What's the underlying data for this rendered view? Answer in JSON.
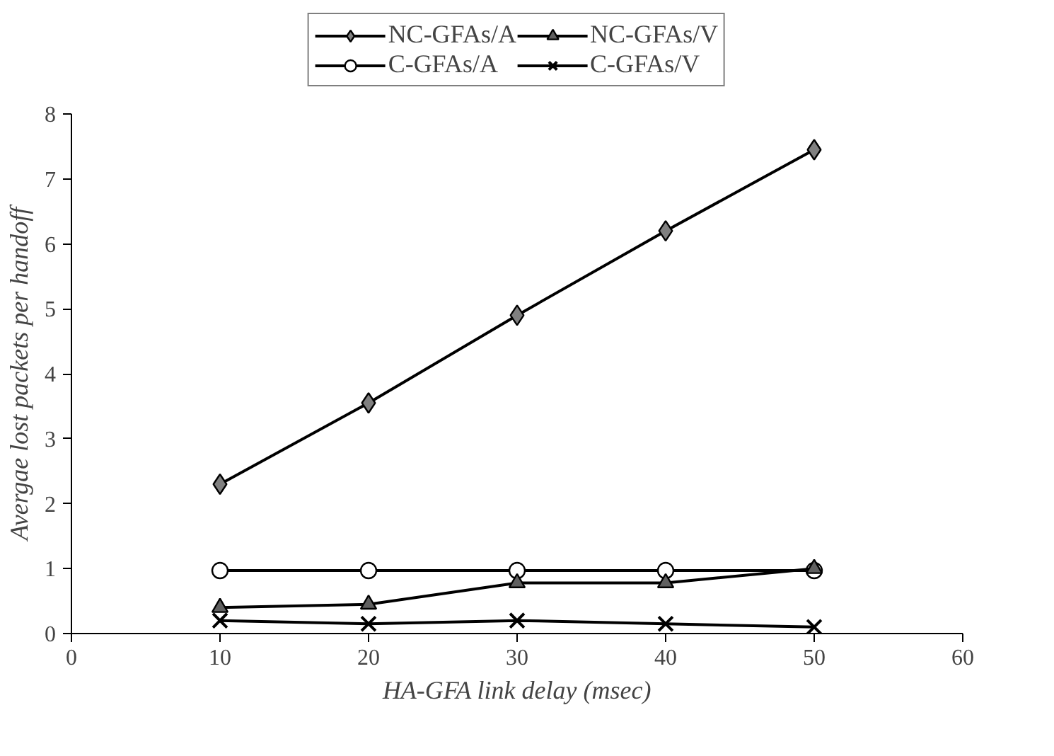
{
  "chart_data": {
    "type": "line",
    "xlabel": "HA-GFA link delay (msec)",
    "ylabel": "Avergae lost packets per handoff",
    "x": [
      10,
      20,
      30,
      40,
      50
    ],
    "series": [
      {
        "name": "NC-GFAs/A",
        "color": "#808080",
        "marker": "diamond",
        "values": [
          2.3,
          3.55,
          4.9,
          6.2,
          7.45
        ]
      },
      {
        "name": "C-GFAs/A",
        "color": "#ffffff",
        "marker": "circle",
        "values": [
          0.97,
          0.97,
          0.97,
          0.97,
          0.97
        ]
      },
      {
        "name": "NC-GFAs/V",
        "color": "#606060",
        "marker": "triangle",
        "values": [
          0.4,
          0.45,
          0.78,
          0.78,
          1.0
        ]
      },
      {
        "name": "C-GFAs/V",
        "color": "#000000",
        "marker": "cross",
        "values": [
          0.2,
          0.15,
          0.2,
          0.15,
          0.1
        ]
      }
    ],
    "xlim": [
      0,
      60
    ],
    "xticks": [
      0,
      10,
      20,
      30,
      40,
      50,
      60
    ],
    "ylim": [
      0,
      8
    ],
    "yticks": [
      0,
      1,
      2,
      3,
      4,
      5,
      6,
      7,
      8
    ],
    "grid": false,
    "legend": "top",
    "line_style": "solid"
  }
}
